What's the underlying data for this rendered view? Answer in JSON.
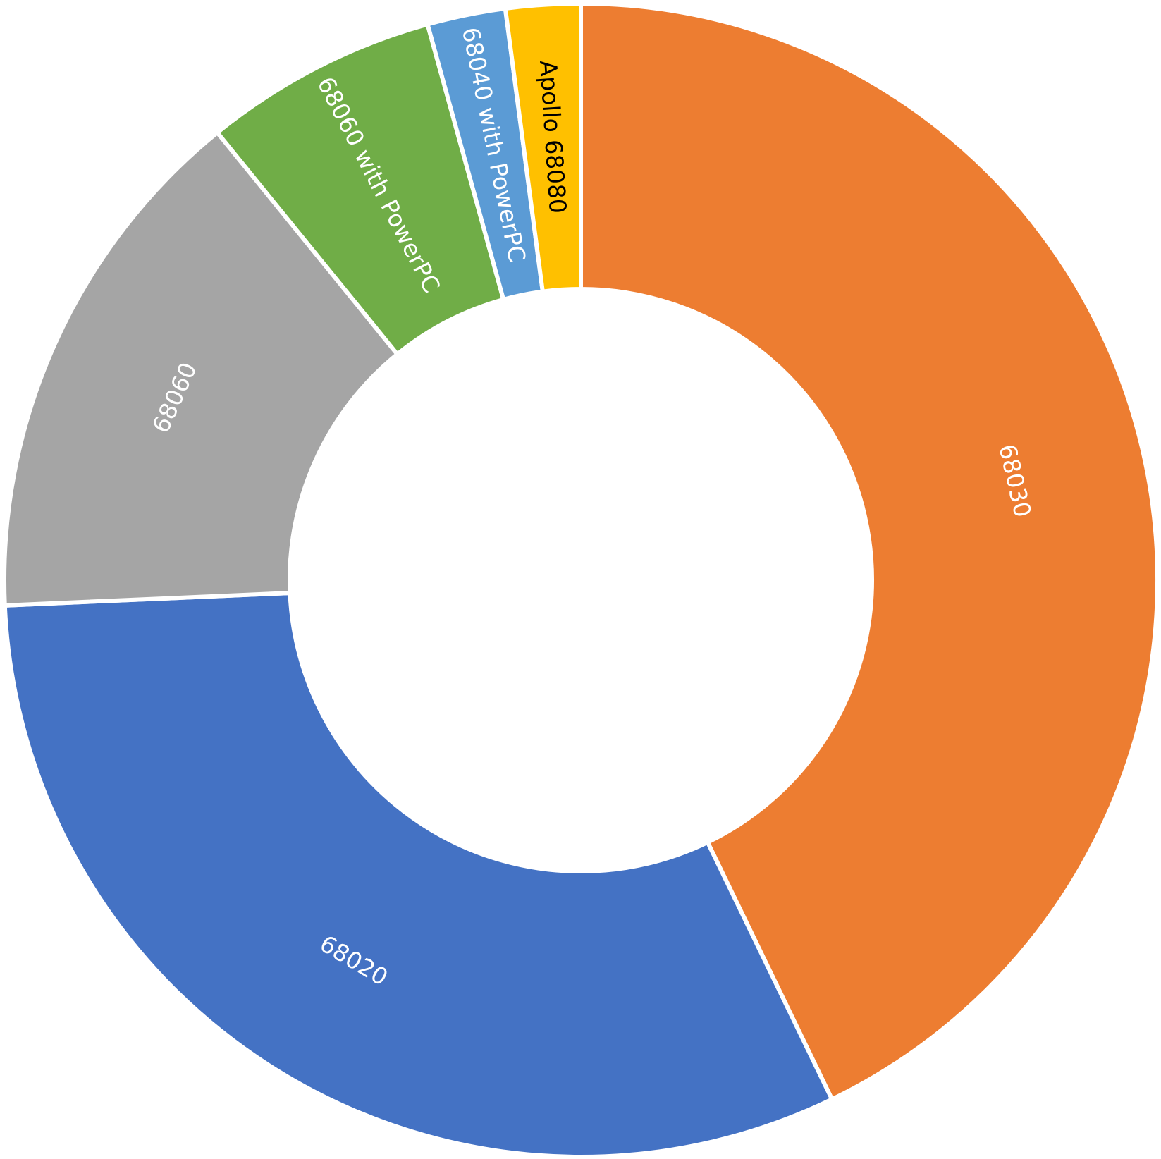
{
  "chart_data": {
    "type": "pie",
    "variant": "donut",
    "title": "",
    "legend": "none",
    "order": "clockwise from top",
    "categories": [
      "68030",
      "68020",
      "68060",
      "68060 with PowerPC",
      "68040 with PowerPC",
      "Apollo 68080"
    ],
    "values": [
      43.0,
      31.6,
      14.9,
      6.6,
      2.2,
      2.1
    ],
    "slices": [
      {
        "label": "68030",
        "value": 43.0,
        "color": "#ED7D31",
        "label_color": "#FFFFFF"
      },
      {
        "label": "68020",
        "value": 31.6,
        "color": "#4472C4",
        "label_color": "#FFFFFF"
      },
      {
        "label": "68060",
        "value": 14.9,
        "color": "#A5A5A5",
        "label_color": "#FFFFFF"
      },
      {
        "label": "68060 with PowerPC",
        "value": 6.6,
        "color": "#70AD47",
        "label_color": "#FFFFFF"
      },
      {
        "label": "68040 with PowerPC",
        "value": 2.2,
        "color": "#5B9BD5",
        "label_color": "#FFFFFF"
      },
      {
        "label": "Apollo 68080",
        "value": 2.1,
        "color": "#FFC000",
        "label_color": "#000000"
      }
    ]
  }
}
